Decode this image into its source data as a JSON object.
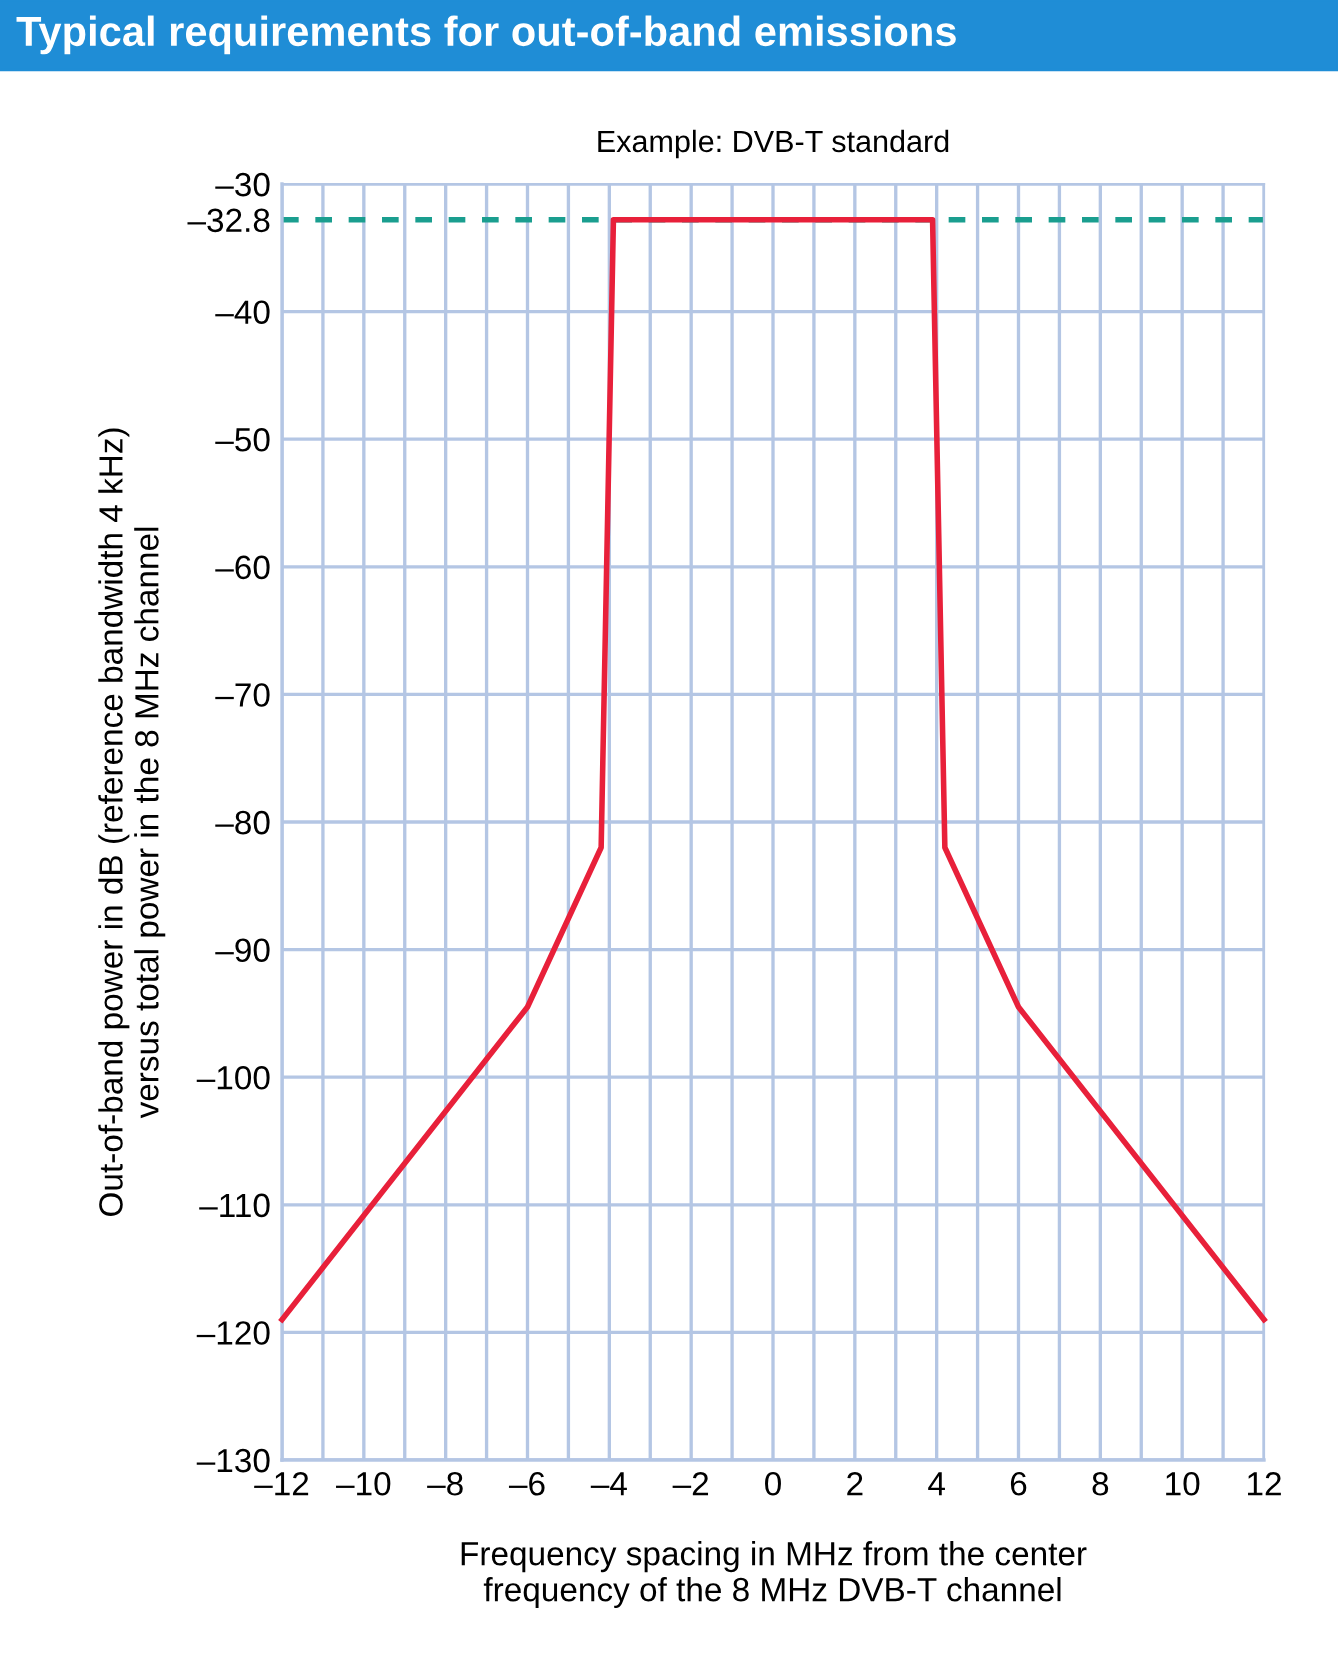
{
  "chart_data": {
    "type": "line",
    "title": "Typical requirements for out-of-band emissions",
    "subtitle": "Example: DVB-T standard",
    "xlabel": "Frequency spacing in MHz from the center\nfrequency of the 8 MHz DVB-T channel",
    "ylabel": "Out-of-band power in dB (reference bandwidth 4 kHz)\nversus total power in the 8 MHz channel",
    "x": [
      -12,
      -6,
      -4.2,
      -3.9,
      3.9,
      4.2,
      6,
      12
    ],
    "series": [
      {
        "color": "#e8203a",
        "values": [
          -119,
          -94.5,
          -82,
          -32.8,
          -32.8,
          -82,
          -94.5,
          -119
        ]
      }
    ],
    "xlim": [
      -12,
      12
    ],
    "ylim": [
      -130,
      -30
    ],
    "xticks": [
      {
        "value": -12,
        "label": "–12"
      },
      {
        "value": -11,
        "label": null
      },
      {
        "value": -10,
        "label": "–10"
      },
      {
        "value": -9,
        "label": null
      },
      {
        "value": -8,
        "label": "–8"
      },
      {
        "value": -7,
        "label": null
      },
      {
        "value": -6,
        "label": "–6"
      },
      {
        "value": -5,
        "label": null
      },
      {
        "value": -4,
        "label": "–4"
      },
      {
        "value": -3,
        "label": null
      },
      {
        "value": -2,
        "label": "–2"
      },
      {
        "value": -1,
        "label": null
      },
      0,
      {
        "value": 1,
        "label": null
      },
      2,
      {
        "value": 3,
        "label": null
      },
      4,
      {
        "value": 5,
        "label": null
      },
      6,
      {
        "value": 7,
        "label": null
      },
      8,
      {
        "value": 9,
        "label": null
      },
      10,
      {
        "value": 11,
        "label": null
      },
      12
    ],
    "yticks": [
      {
        "value": -130,
        "label": "–130"
      },
      {
        "value": -120,
        "label": "–120"
      },
      {
        "value": -110,
        "label": "–110"
      },
      {
        "value": -100,
        "label": "–100"
      },
      {
        "value": -90,
        "label": "–90"
      },
      {
        "value": -80,
        "label": "–80"
      },
      {
        "value": -70,
        "label": "–70"
      },
      {
        "value": -60,
        "label": "–60"
      },
      {
        "value": -50,
        "label": "–50"
      },
      {
        "value": -40,
        "label": "–40"
      },
      {
        "value": -32.8,
        "label": "–32.8"
      },
      {
        "value": -30,
        "label": "–30"
      }
    ],
    "ref_lines": [
      {
        "axis": "y",
        "value": -32.8,
        "color": "#1a9e8f",
        "line_style": "dashed"
      }
    ],
    "grid": true,
    "marker": "none",
    "line_style": "solid"
  }
}
